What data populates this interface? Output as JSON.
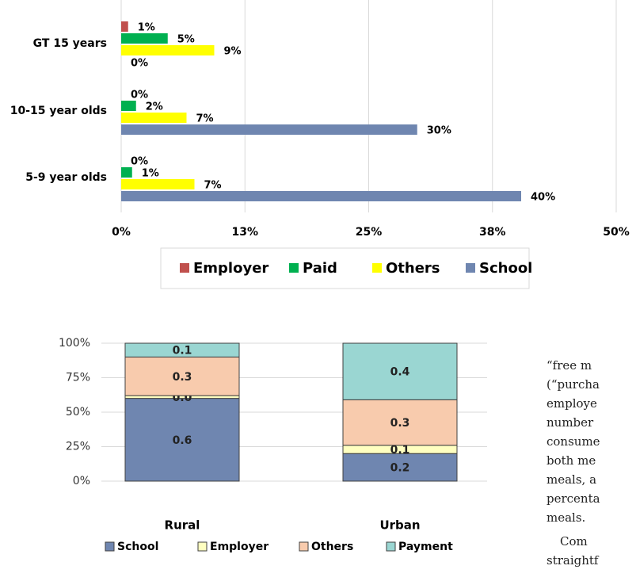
{
  "chart_data": [
    {
      "type": "hbar",
      "categories": [
        "GT 15 years",
        "10-15 year olds",
        "5-9 year olds"
      ],
      "series": [
        {
          "name": "Employer",
          "color": "#c0504d",
          "values": [
            0.7,
            0,
            0
          ],
          "value_labels": [
            "1%",
            "0%",
            "0%"
          ]
        },
        {
          "name": "Paid",
          "color": "#00b050",
          "values": [
            4.7,
            1.5,
            1.1
          ],
          "value_labels": [
            "5%",
            "2%",
            "1%"
          ]
        },
        {
          "name": "Others",
          "color": "#ffff00",
          "values": [
            9.4,
            6.6,
            7.4
          ],
          "value_labels": [
            "9%",
            "7%",
            "7%"
          ]
        },
        {
          "name": "School",
          "color": "#6f86b0",
          "values": [
            0,
            29.9,
            40.4
          ],
          "value_labels": [
            "0%",
            "30%",
            "40%"
          ]
        }
      ],
      "xlim": [
        0,
        50
      ],
      "xticks": [
        {
          "value": 0,
          "label": "0%"
        },
        {
          "value": 12.5,
          "label": "13%"
        },
        {
          "value": 25,
          "label": "25%"
        },
        {
          "value": 37.5,
          "label": "38%"
        },
        {
          "value": 50,
          "label": "50%"
        }
      ],
      "grid": true,
      "legend": "bottom"
    },
    {
      "type": "stacked_bar",
      "categories": [
        "Rural",
        "Urban"
      ],
      "series": [
        {
          "name": "School",
          "color": "#6f86b0",
          "values": [
            0.6,
            0.2
          ],
          "value_labels": [
            "0.6",
            "0.2"
          ]
        },
        {
          "name": "Employer",
          "color": "#ffffc0",
          "values": [
            0.02,
            0.06
          ],
          "value_labels": [
            "0.0",
            "0.1"
          ]
        },
        {
          "name": "Others",
          "color": "#f8cbad",
          "values": [
            0.28,
            0.33
          ],
          "value_labels": [
            "0.3",
            "0.3"
          ]
        },
        {
          "name": "Payment",
          "color": "#9ad6d2",
          "values": [
            0.1,
            0.41
          ],
          "value_labels": [
            "0.1",
            "0.4"
          ]
        }
      ],
      "ylim": [
        0,
        1
      ],
      "yticks": [
        {
          "value": 0,
          "label": "0%"
        },
        {
          "value": 0.25,
          "label": "25%"
        },
        {
          "value": 0.5,
          "label": "50%"
        },
        {
          "value": 0.75,
          "label": "75%"
        },
        {
          "value": 1,
          "label": "100%"
        }
      ],
      "grid": true,
      "legend": "bottom"
    }
  ],
  "document": {
    "lines": [
      "“free m",
      "(“purcha",
      "employe",
      "number",
      "consume",
      "both me",
      "meals, a",
      "percenta",
      "meals.",
      "Com",
      "straightf"
    ]
  }
}
